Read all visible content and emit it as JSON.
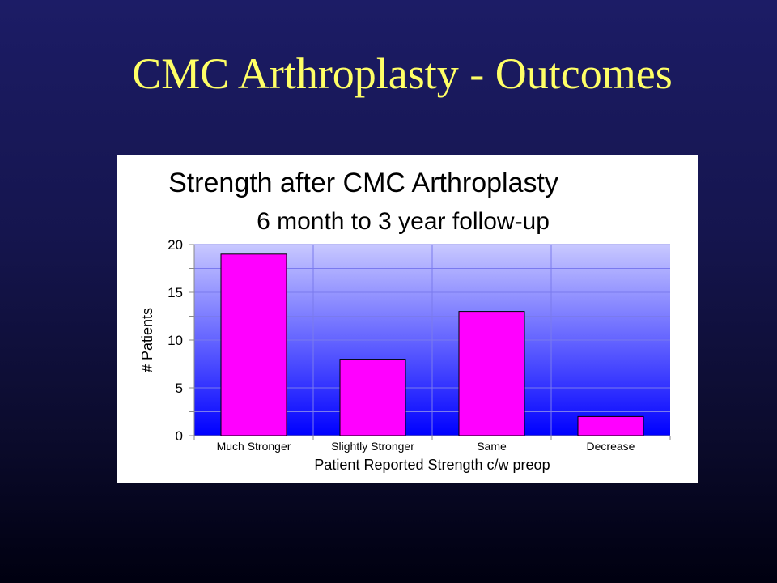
{
  "slide": {
    "title": "CMC Arthroplasty - Outcomes"
  },
  "colors": {
    "title_text": "#ffff66",
    "bar_fill": "#ff00ff",
    "plot_top": "#c8c8ff",
    "plot_bottom": "#0000ff",
    "panel": "#ffffff"
  },
  "chart_data": {
    "type": "bar",
    "title": "Strength after CMC Arthroplasty",
    "subtitle": "6 month to 3 year follow-up",
    "categories": [
      "Much Stronger",
      "Slightly Stronger",
      "Same",
      "Decrease"
    ],
    "values": [
      19,
      8,
      13,
      2
    ],
    "xlabel": "Patient Reported Strength c/w preop",
    "ylabel": "# Patients",
    "ylim": [
      0,
      20
    ],
    "yticks": [
      0,
      5,
      10,
      15,
      20
    ],
    "grid": true,
    "legend": "none"
  }
}
